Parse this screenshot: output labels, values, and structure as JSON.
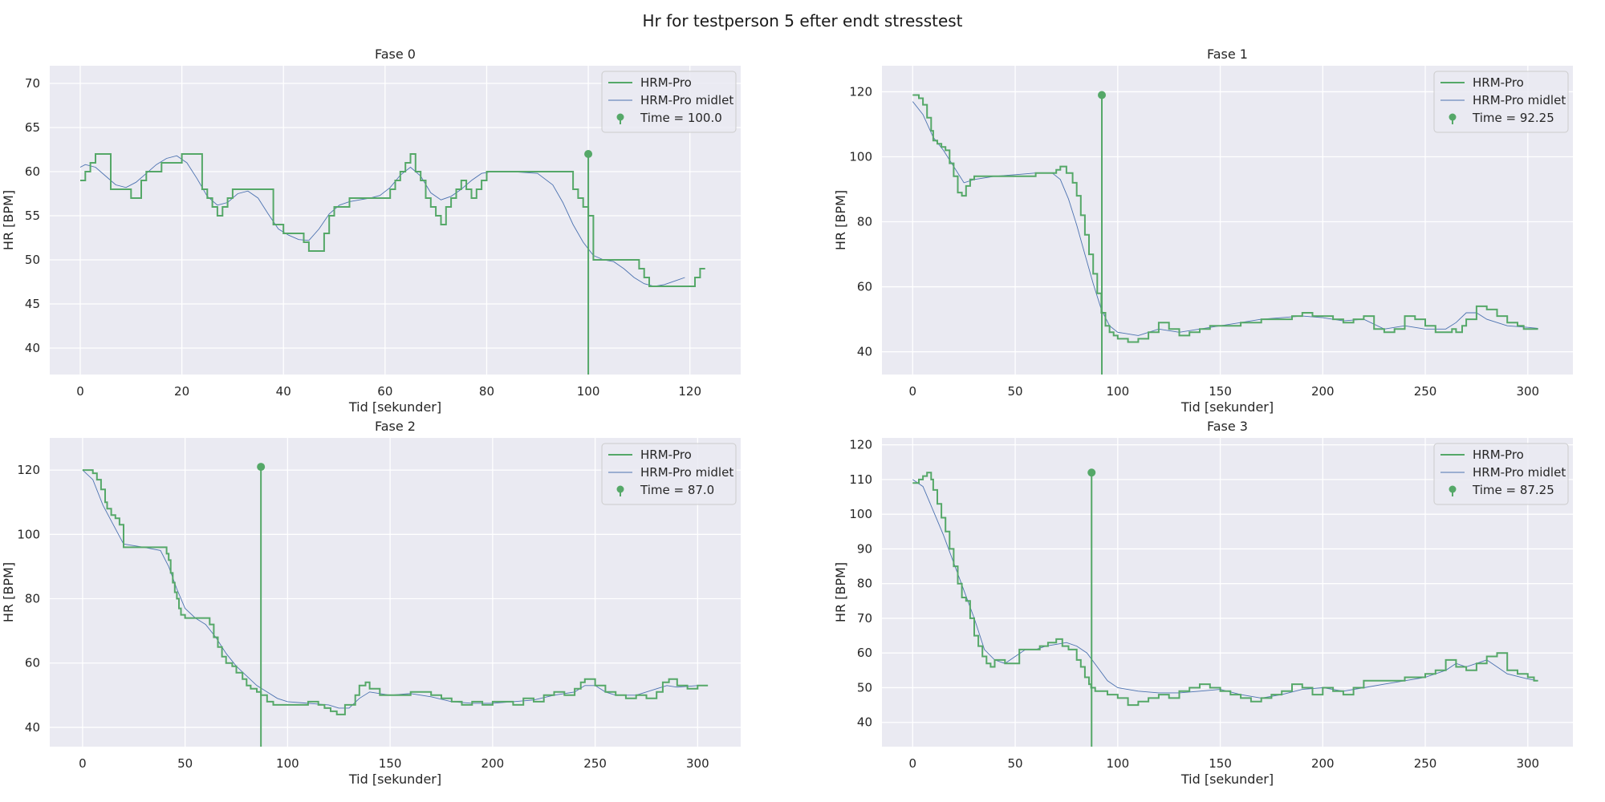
{
  "figure": {
    "title": "Hr for testperson 5 efter endt stresstest"
  },
  "colors": {
    "raw": "#55a868",
    "avg": "#4c72b0",
    "bg": "#eaeaf2",
    "grid": "#ffffff"
  },
  "chart_data": [
    {
      "type": "line",
      "title": "Fase 0",
      "xlabel": "Tid [sekunder]",
      "ylabel": "HR [BPM]",
      "xlim": [
        -6,
        130
      ],
      "ylim": [
        37,
        72
      ],
      "xticks": [
        0,
        20,
        40,
        60,
        80,
        100,
        120
      ],
      "yticks": [
        40,
        45,
        50,
        55,
        60,
        65,
        70
      ],
      "grid": true,
      "legend_position": "top-right",
      "marker": {
        "label": "Time = 100.0",
        "x": 100.0,
        "y": 62
      },
      "series": [
        {
          "name": "HRM-Pro",
          "style": "step",
          "x": [
            0,
            1,
            2,
            3,
            5,
            6,
            7,
            8,
            9,
            10,
            12,
            13,
            14,
            16,
            20,
            23,
            24,
            25,
            26,
            27,
            28,
            29,
            30,
            37,
            38,
            40,
            43,
            44,
            45,
            46,
            48,
            49,
            50,
            53,
            54,
            60,
            61,
            62,
            63,
            64,
            65,
            66,
            67,
            68,
            69,
            70,
            71,
            72,
            73,
            74,
            75,
            76,
            77,
            78,
            79,
            80,
            96,
            97,
            98,
            99,
            100,
            101,
            109,
            110,
            111,
            112,
            115,
            120,
            121,
            122,
            123
          ],
          "y": [
            59,
            60,
            61,
            62,
            62,
            58,
            58,
            58,
            58,
            57,
            59,
            60,
            60,
            61,
            62,
            62,
            58,
            57,
            56,
            55,
            56,
            57,
            58,
            58,
            54,
            53,
            53,
            52,
            51,
            51,
            53,
            55,
            56,
            57,
            57,
            57,
            58,
            59,
            60,
            61,
            62,
            60,
            59,
            57,
            56,
            55,
            54,
            56,
            57,
            58,
            59,
            58,
            57,
            58,
            59,
            60,
            60,
            58,
            57,
            56,
            55,
            50,
            50,
            49,
            48,
            47,
            47,
            47,
            48,
            49,
            49
          ]
        },
        {
          "name": "HRM-Pro midlet",
          "style": "line",
          "x": [
            0,
            1,
            3,
            5,
            7,
            9,
            11,
            13,
            15,
            17,
            19,
            21,
            23,
            25,
            27,
            29,
            31,
            33,
            35,
            37,
            39,
            41,
            43,
            45,
            47,
            49,
            51,
            53,
            55,
            57,
            59,
            61,
            63,
            65,
            67,
            69,
            71,
            73,
            75,
            77,
            79,
            81,
            85,
            90,
            93,
            95,
            97,
            99,
            101,
            103,
            105,
            107,
            109,
            111,
            113,
            115,
            117,
            119
          ],
          "y": [
            60.5,
            60.8,
            60.5,
            59.5,
            58.5,
            58.2,
            58.8,
            59.8,
            60.8,
            61.5,
            61.8,
            61.0,
            59.2,
            57.2,
            56.2,
            56.5,
            57.5,
            57.8,
            57.0,
            55.2,
            53.5,
            52.8,
            52.3,
            52.2,
            53.5,
            55.2,
            56.2,
            56.6,
            56.8,
            57.0,
            57.3,
            58.2,
            59.6,
            60.5,
            59.5,
            57.6,
            56.8,
            57.2,
            58.0,
            59.0,
            59.8,
            60.0,
            60.0,
            59.8,
            58.5,
            56.5,
            54.0,
            52.0,
            50.5,
            50.0,
            49.8,
            49.0,
            48.0,
            47.3,
            47.0,
            47.2,
            47.6,
            48.0
          ]
        }
      ]
    },
    {
      "type": "line",
      "title": "Fase 1",
      "xlabel": "Tid [sekunder]",
      "ylabel": "HR [BPM]",
      "xlim": [
        -15,
        322
      ],
      "ylim": [
        33,
        128
      ],
      "xticks": [
        0,
        50,
        100,
        150,
        200,
        250,
        300
      ],
      "yticks": [
        40,
        60,
        80,
        100,
        120
      ],
      "grid": true,
      "legend_position": "top-right",
      "marker": {
        "label": "Time = 92.25",
        "x": 92.25,
        "y": 119
      },
      "series": [
        {
          "name": "HRM-Pro",
          "style": "step",
          "x": [
            0,
            3,
            5,
            7,
            9,
            10,
            12,
            14,
            16,
            18,
            20,
            22,
            24,
            26,
            28,
            30,
            55,
            60,
            65,
            70,
            72,
            75,
            78,
            80,
            82,
            84,
            86,
            88,
            90,
            92,
            94,
            96,
            98,
            100,
            105,
            110,
            115,
            120,
            125,
            130,
            135,
            140,
            145,
            150,
            160,
            170,
            180,
            185,
            190,
            195,
            200,
            205,
            210,
            215,
            220,
            225,
            230,
            235,
            240,
            245,
            250,
            255,
            260,
            263,
            265,
            268,
            270,
            275,
            280,
            285,
            290,
            295,
            298,
            300,
            305
          ],
          "y": [
            119,
            118,
            116,
            112,
            108,
            105,
            104,
            103,
            102,
            98,
            94,
            89,
            88,
            91,
            93,
            94,
            94,
            95,
            95,
            96,
            97,
            95,
            92,
            88,
            82,
            76,
            70,
            64,
            58,
            52,
            48,
            46,
            45,
            44,
            43,
            44,
            46,
            49,
            47,
            45,
            46,
            47,
            48,
            48,
            49,
            50,
            50,
            51,
            52,
            51,
            51,
            50,
            49,
            50,
            51,
            47,
            46,
            47,
            51,
            50,
            48,
            46,
            46,
            47,
            46,
            48,
            50,
            54,
            53,
            51,
            49,
            48,
            47,
            47,
            47
          ]
        },
        {
          "name": "HRM-Pro midlet",
          "style": "line",
          "x": [
            0,
            5,
            10,
            15,
            20,
            25,
            30,
            40,
            50,
            60,
            68,
            72,
            76,
            80,
            84,
            88,
            92,
            96,
            100,
            110,
            120,
            130,
            140,
            150,
            160,
            170,
            180,
            190,
            200,
            210,
            220,
            230,
            240,
            250,
            260,
            265,
            270,
            275,
            280,
            290,
            300,
            305
          ],
          "y": [
            117,
            113,
            106,
            102,
            97,
            92,
            93,
            94,
            94.5,
            95,
            95,
            93,
            87,
            79,
            70,
            61,
            53,
            48,
            46,
            45,
            47,
            46,
            47,
            48,
            49,
            50,
            50.5,
            51,
            50.5,
            49.5,
            50,
            47,
            48,
            47,
            47,
            49,
            52,
            52,
            50,
            48,
            47.5,
            47.2
          ]
        }
      ]
    },
    {
      "type": "line",
      "title": "Fase 2",
      "xlabel": "Tid [sekunder]",
      "ylabel": "HR [BPM]",
      "xlim": [
        -16,
        321
      ],
      "ylim": [
        34,
        130
      ],
      "xticks": [
        0,
        50,
        100,
        150,
        200,
        250,
        300
      ],
      "yticks": [
        40,
        60,
        80,
        100,
        120
      ],
      "grid": true,
      "legend_position": "top-right",
      "marker": {
        "label": "Time = 87.0",
        "x": 87.0,
        "y": 121
      },
      "series": [
        {
          "name": "HRM-Pro",
          "style": "step",
          "x": [
            0,
            5,
            7,
            9,
            11,
            12,
            14,
            16,
            18,
            20,
            40,
            41,
            42,
            43,
            44,
            45,
            46,
            47,
            48,
            50,
            60,
            62,
            64,
            66,
            68,
            70,
            73,
            75,
            78,
            80,
            82,
            85,
            87,
            90,
            93,
            95,
            98,
            110,
            115,
            118,
            121,
            124,
            128,
            133,
            135,
            138,
            140,
            145,
            150,
            160,
            170,
            175,
            180,
            185,
            190,
            195,
            200,
            205,
            210,
            215,
            220,
            225,
            230,
            235,
            240,
            243,
            245,
            250,
            255,
            260,
            265,
            270,
            275,
            280,
            283,
            286,
            290,
            295,
            300,
            305
          ],
          "y": [
            120,
            119,
            117,
            114,
            110,
            108,
            106,
            105,
            103,
            96,
            96,
            94,
            92,
            88,
            85,
            82,
            80,
            77,
            75,
            74,
            74,
            72,
            68,
            65,
            62,
            60,
            59,
            57,
            55,
            53,
            52,
            51,
            50,
            48,
            47,
            47,
            47,
            48,
            47,
            46,
            45,
            44,
            47,
            50,
            53,
            54,
            52,
            50,
            50,
            51,
            50,
            49,
            48,
            47,
            48,
            47,
            48,
            48,
            47,
            49,
            48,
            50,
            51,
            50,
            52,
            54,
            55,
            53,
            51,
            50,
            49,
            50,
            49,
            51,
            54,
            55,
            53,
            52,
            53,
            53
          ]
        },
        {
          "name": "HRM-Pro midlet",
          "style": "line",
          "x": [
            0,
            5,
            10,
            15,
            20,
            30,
            38,
            42,
            46,
            50,
            55,
            60,
            65,
            70,
            75,
            80,
            85,
            90,
            95,
            100,
            110,
            120,
            125,
            130,
            135,
            140,
            150,
            160,
            170,
            180,
            190,
            200,
            210,
            220,
            230,
            240,
            245,
            250,
            255,
            260,
            270,
            280,
            285,
            290,
            300,
            305
          ],
          "y": [
            120,
            117,
            109,
            103,
            97,
            96,
            95,
            90,
            83,
            77,
            74,
            72,
            68,
            63,
            59,
            56,
            53,
            51,
            49,
            48,
            47.5,
            47,
            46,
            46,
            49,
            51,
            50,
            50.5,
            49.5,
            48,
            47.5,
            47.5,
            48,
            48.5,
            50,
            51,
            53,
            53,
            51,
            50,
            50,
            52,
            53,
            52.5,
            53,
            53
          ]
        }
      ]
    },
    {
      "type": "line",
      "title": "Fase 3",
      "xlabel": "Tid [sekunder]",
      "ylabel": "HR [BPM]",
      "xlim": [
        -15,
        322
      ],
      "ylim": [
        33,
        122
      ],
      "xticks": [
        0,
        50,
        100,
        150,
        200,
        250,
        300
      ],
      "yticks": [
        40,
        50,
        60,
        70,
        80,
        90,
        100,
        110,
        120
      ],
      "grid": true,
      "legend_position": "top-right",
      "marker": {
        "label": "Time = 87.25",
        "x": 87.25,
        "y": 112
      },
      "series": [
        {
          "name": "HRM-Pro",
          "style": "step",
          "x": [
            0,
            3,
            5,
            7,
            9,
            10,
            12,
            14,
            16,
            18,
            20,
            22,
            24,
            26,
            28,
            30,
            32,
            34,
            36,
            38,
            40,
            45,
            52,
            58,
            62,
            66,
            70,
            73,
            76,
            80,
            82,
            84,
            86,
            87,
            89,
            92,
            95,
            100,
            105,
            110,
            115,
            120,
            125,
            130,
            135,
            140,
            145,
            150,
            155,
            160,
            165,
            170,
            175,
            180,
            185,
            190,
            195,
            200,
            205,
            210,
            215,
            220,
            230,
            240,
            250,
            255,
            260,
            265,
            270,
            275,
            280,
            285,
            290,
            295,
            300,
            303,
            305
          ],
          "y": [
            109,
            110,
            111,
            112,
            110,
            107,
            103,
            99,
            95,
            90,
            85,
            80,
            76,
            75,
            70,
            65,
            62,
            59,
            57,
            56,
            58,
            57,
            61,
            61,
            62,
            63,
            64,
            62,
            61,
            58,
            56,
            53,
            51,
            50,
            49,
            49,
            48,
            47,
            45,
            46,
            47,
            48,
            47,
            49,
            50,
            51,
            50,
            49,
            48,
            47,
            46,
            47,
            48,
            49,
            51,
            50,
            48,
            50,
            49,
            48,
            50,
            52,
            52,
            53,
            54,
            55,
            58,
            56,
            55,
            57,
            59,
            60,
            55,
            54,
            53,
            52,
            52
          ]
        },
        {
          "name": "HRM-Pro midlet",
          "style": "line",
          "x": [
            0,
            5,
            10,
            15,
            20,
            25,
            30,
            35,
            40,
            45,
            50,
            55,
            60,
            65,
            70,
            75,
            80,
            85,
            90,
            95,
            100,
            110,
            120,
            130,
            140,
            150,
            160,
            170,
            180,
            190,
            200,
            210,
            220,
            230,
            240,
            250,
            260,
            265,
            270,
            275,
            280,
            285,
            290,
            300,
            305
          ],
          "y": [
            110,
            108,
            101,
            94,
            86,
            78,
            70,
            61,
            58,
            57,
            59,
            61,
            61,
            62,
            62.5,
            63,
            62,
            60,
            56,
            52,
            50,
            49,
            48.5,
            48.5,
            49,
            49.5,
            48,
            47,
            48,
            49.5,
            50,
            49,
            50,
            51,
            52,
            53,
            55,
            57,
            56,
            57,
            58,
            56,
            54,
            52.5,
            52
          ]
        }
      ]
    }
  ]
}
